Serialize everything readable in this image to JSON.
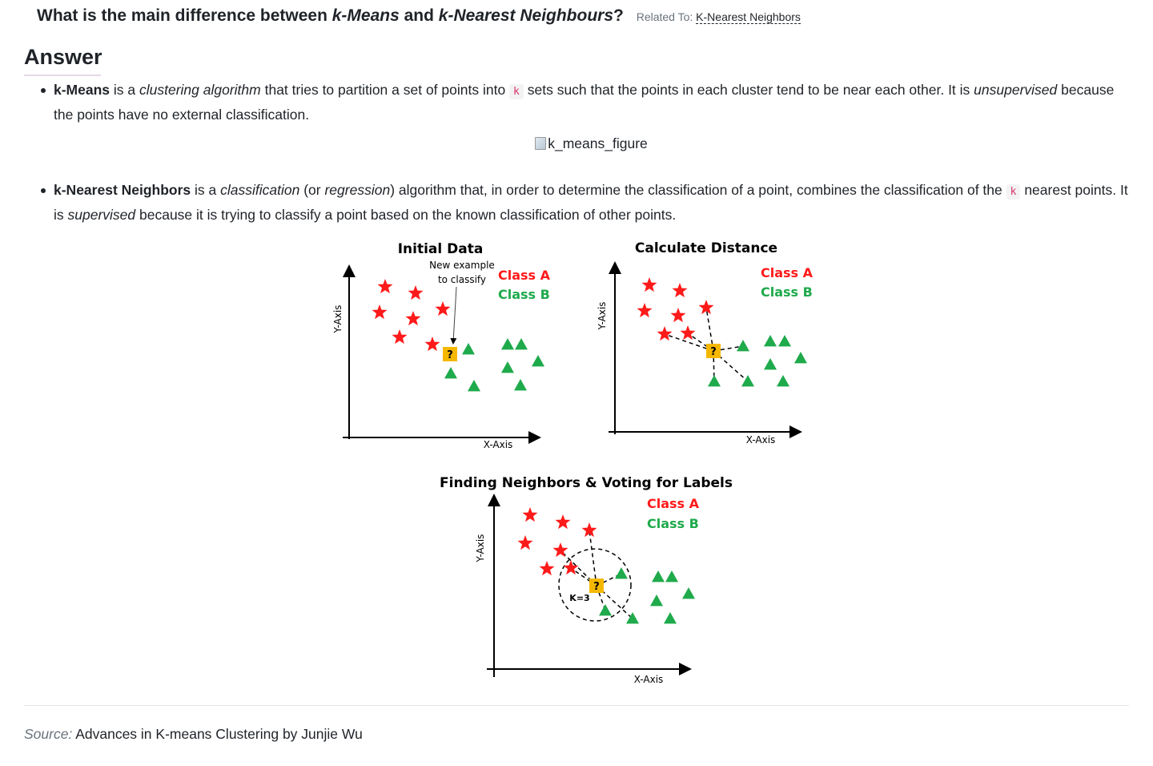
{
  "question": {
    "prefix": "What is the main difference between ",
    "term1": "k-Means",
    "middle": " and ",
    "term2": "k-Nearest Neighbours",
    "suffix": "?",
    "related_label": "Related To:",
    "related_link": "K-Nearest Neighbors"
  },
  "answer": {
    "heading": "Answer",
    "item1": {
      "term": "k-Means",
      "t1": " is a ",
      "em1": "clustering algorithm",
      "t2": " that tries to partition a set of points into ",
      "code": "k",
      "t3": " sets such that the points in each cluster tend to be near each other. It is ",
      "em2": "unsupervised",
      "t4": " because the points have no external classification."
    },
    "image_alt": "k_means_figure",
    "item2": {
      "term": "k-Nearest Neighbors",
      "t1": " is a ",
      "em1": "classification",
      "t2": " (or ",
      "em2": "regression",
      "t3": ") algorithm that, in order to determine the classification of a point, combines the classification of the ",
      "code": "k",
      "t4": " nearest points. It is ",
      "em3": "supervised",
      "t5": " because it is trying to classify a point based on the known classification of other points."
    }
  },
  "figure": {
    "colors": {
      "class_a": "#ff1a1a",
      "class_b": "#1faa4b",
      "query": "#f5b800"
    },
    "panel1": {
      "title": "Initial Data",
      "annotation_line1": "New example",
      "annotation_line2": "to classify",
      "legend_a": "Class A",
      "legend_b": "Class B",
      "xlabel": "X-Axis",
      "ylabel": "Y-Axis",
      "query_mark": "?"
    },
    "panel2": {
      "title": "Calculate Distance",
      "legend_a": "Class A",
      "legend_b": "Class B",
      "xlabel": "X-Axis",
      "ylabel": "Y-Axis",
      "query_mark": "?"
    },
    "panel3": {
      "title": "Finding Neighbors & Voting for Labels",
      "legend_a": "Class A",
      "legend_b": "Class B",
      "xlabel": "X-Axis",
      "ylabel": "Y-Axis",
      "k_label": "K=3",
      "query_mark": "?"
    }
  },
  "source": {
    "label": "Source:",
    "text": " Advances in K-means Clustering by Junjie Wu"
  }
}
